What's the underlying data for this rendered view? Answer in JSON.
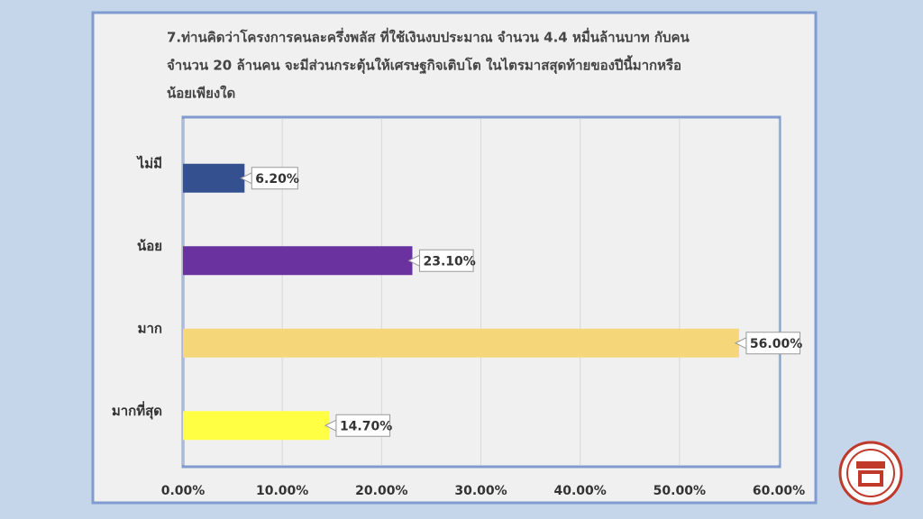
{
  "chart_data": {
    "type": "bar",
    "orientation": "horizontal",
    "title": [
      "7.ท่านคิดว่าโครงการคนละครึ่งพลัส ที่ใช้เงินงบประมาณ จำนวน 4.4  หมื่นล้านบาท กับคน",
      "จำนวน 20   ล้านคน จะมีส่วนกระตุ้นให้เศรษฐกิจเติบโต ในไตรมาสสุดท้ายของปีนี้มากหรือ",
      "น้อยเพียงใด"
    ],
    "categories": [
      "ไม่มี",
      "น้อย",
      "มาก",
      "มากที่สุด"
    ],
    "values": [
      6.2,
      23.1,
      56.0,
      14.7
    ],
    "value_labels": [
      "6.20%",
      "23.10%",
      "56.00%",
      "14.70%"
    ],
    "colors": [
      "#34508f",
      "#6a329f",
      "#f5d77a",
      "#ffff44"
    ],
    "xlim": [
      0,
      60
    ],
    "xticks": [
      {
        "value": 0,
        "label": "0.00%"
      },
      {
        "value": 10,
        "label": "10.00%"
      },
      {
        "value": 20,
        "label": "20.00%"
      },
      {
        "value": 30,
        "label": "30.00%"
      },
      {
        "value": 40,
        "label": "40.00%"
      },
      {
        "value": 50,
        "label": "50.00%"
      },
      {
        "value": 60,
        "label": "60.00%"
      }
    ],
    "grid": true
  }
}
